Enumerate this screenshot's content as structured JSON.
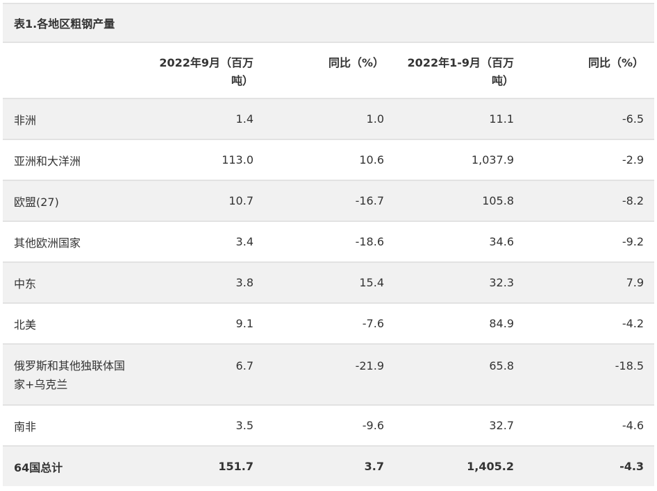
{
  "table": {
    "title": "表1.各地区粗钢产量",
    "headers": [
      "",
      "2022年9月（百万吨）",
      "同比（%）",
      "2022年1-9月（百万吨）",
      "同比（%）"
    ],
    "rows": [
      {
        "region": "非洲",
        "sep": "1.4",
        "sep_yoy": "1.0",
        "ytd": "11.1",
        "ytd_yoy": "-6.5"
      },
      {
        "region": "亚洲和大洋洲",
        "sep": "113.0",
        "sep_yoy": "10.6",
        "ytd": "1,037.9",
        "ytd_yoy": "-2.9"
      },
      {
        "region": "欧盟(27)",
        "sep": "10.7",
        "sep_yoy": "-16.7",
        "ytd": "105.8",
        "ytd_yoy": "-8.2"
      },
      {
        "region": "其他欧洲国家",
        "sep": "3.4",
        "sep_yoy": "-18.6",
        "ytd": "34.6",
        "ytd_yoy": "-9.2"
      },
      {
        "region": "中东",
        "sep": "3.8",
        "sep_yoy": "15.4",
        "ytd": "32.3",
        "ytd_yoy": "7.9"
      },
      {
        "region": "北美",
        "sep": "9.1",
        "sep_yoy": "-7.6",
        "ytd": "84.9",
        "ytd_yoy": "-4.2"
      },
      {
        "region": "俄罗斯和其他独联体国家+乌克兰",
        "sep": "6.7",
        "sep_yoy": "-21.9",
        "ytd": "65.8",
        "ytd_yoy": "-18.5"
      },
      {
        "region": "南非",
        "sep": "3.5",
        "sep_yoy": "-9.6",
        "ytd": "32.7",
        "ytd_yoy": "-4.6"
      }
    ],
    "total": {
      "region": "64国总计",
      "sep": "151.7",
      "sep_yoy": "3.7",
      "ytd": "1,405.2",
      "ytd_yoy": "-4.3"
    }
  }
}
